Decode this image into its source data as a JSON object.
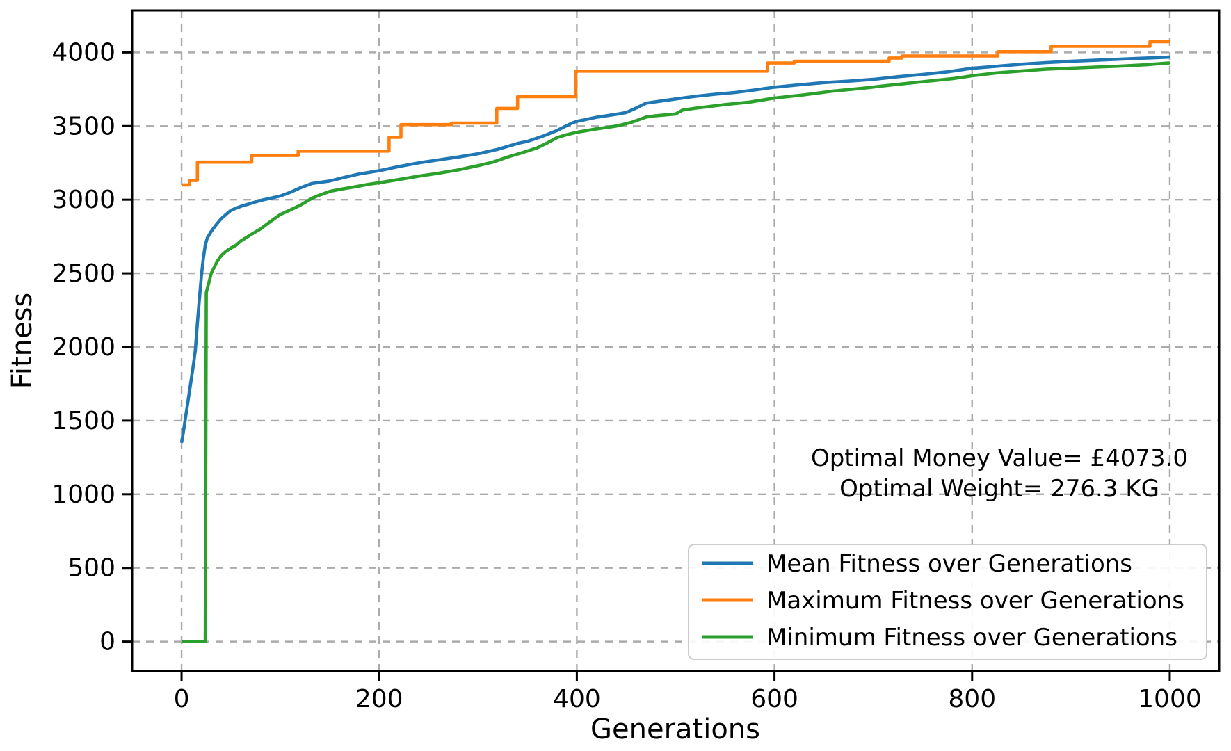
{
  "figure": {
    "background": "#ffffff",
    "spine_color": "#000000",
    "grid_color": "#ababab",
    "tick_label_color": "#000000"
  },
  "chart_data": {
    "type": "line",
    "title": "",
    "xlabel": "Generations",
    "ylabel": "Fitness",
    "xlim": [
      -50,
      1050
    ],
    "ylim": [
      -200,
      4285
    ],
    "xticks": [
      0,
      200,
      400,
      600,
      800,
      1000
    ],
    "yticks": [
      0,
      500,
      1000,
      1500,
      2000,
      2500,
      3000,
      3500,
      4000
    ],
    "grid": true,
    "grid_style": "dashed",
    "legend_position": "lower right",
    "annotation": {
      "lines": [
        "Optimal Money Value= £4073.0",
        "Optimal Weight= 276.3 KG"
      ],
      "align": "center"
    },
    "series": [
      {
        "name": "Mean Fitness over Generations",
        "color": "#1f77b4",
        "points": [
          [
            0,
            1350
          ],
          [
            2,
            1430
          ],
          [
            4,
            1520
          ],
          [
            6,
            1610
          ],
          [
            8,
            1700
          ],
          [
            10,
            1790
          ],
          [
            12,
            1880
          ],
          [
            14,
            1980
          ],
          [
            16,
            2160
          ],
          [
            18,
            2320
          ],
          [
            20,
            2480
          ],
          [
            22,
            2600
          ],
          [
            24,
            2690
          ],
          [
            26,
            2740
          ],
          [
            30,
            2785
          ],
          [
            35,
            2830
          ],
          [
            40,
            2870
          ],
          [
            45,
            2900
          ],
          [
            50,
            2928
          ],
          [
            60,
            2955
          ],
          [
            70,
            2975
          ],
          [
            80,
            2995
          ],
          [
            90,
            3010
          ],
          [
            100,
            3025
          ],
          [
            110,
            3050
          ],
          [
            120,
            3080
          ],
          [
            132,
            3110
          ],
          [
            150,
            3127
          ],
          [
            165,
            3152
          ],
          [
            180,
            3175
          ],
          [
            200,
            3197
          ],
          [
            220,
            3225
          ],
          [
            240,
            3250
          ],
          [
            260,
            3270
          ],
          [
            280,
            3290
          ],
          [
            300,
            3312
          ],
          [
            320,
            3342
          ],
          [
            340,
            3382
          ],
          [
            350,
            3396
          ],
          [
            365,
            3430
          ],
          [
            380,
            3470
          ],
          [
            395,
            3520
          ],
          [
            400,
            3532
          ],
          [
            420,
            3560
          ],
          [
            440,
            3580
          ],
          [
            450,
            3592
          ],
          [
            460,
            3622
          ],
          [
            470,
            3655
          ],
          [
            485,
            3670
          ],
          [
            500,
            3684
          ],
          [
            520,
            3702
          ],
          [
            540,
            3716
          ],
          [
            560,
            3728
          ],
          [
            580,
            3745
          ],
          [
            600,
            3764
          ],
          [
            625,
            3780
          ],
          [
            650,
            3795
          ],
          [
            675,
            3805
          ],
          [
            700,
            3817
          ],
          [
            725,
            3835
          ],
          [
            750,
            3850
          ],
          [
            775,
            3868
          ],
          [
            800,
            3892
          ],
          [
            825,
            3906
          ],
          [
            850,
            3920
          ],
          [
            875,
            3931
          ],
          [
            900,
            3940
          ],
          [
            925,
            3947
          ],
          [
            950,
            3954
          ],
          [
            975,
            3961
          ],
          [
            1000,
            3968
          ]
        ]
      },
      {
        "name": "Maximum Fitness over Generations",
        "color": "#ff7f0e",
        "points": [
          [
            0,
            3100
          ],
          [
            8,
            3100
          ],
          [
            8,
            3130
          ],
          [
            16,
            3130
          ],
          [
            16,
            3255
          ],
          [
            71,
            3255
          ],
          [
            71,
            3300
          ],
          [
            118,
            3300
          ],
          [
            118,
            3330
          ],
          [
            210,
            3330
          ],
          [
            210,
            3424
          ],
          [
            222,
            3424
          ],
          [
            222,
            3510
          ],
          [
            273,
            3510
          ],
          [
            273,
            3520
          ],
          [
            319,
            3520
          ],
          [
            319,
            3620
          ],
          [
            340,
            3620
          ],
          [
            340,
            3700
          ],
          [
            399,
            3700
          ],
          [
            399,
            3873
          ],
          [
            593,
            3873
          ],
          [
            593,
            3928
          ],
          [
            620,
            3928
          ],
          [
            620,
            3940
          ],
          [
            716,
            3940
          ],
          [
            716,
            3962
          ],
          [
            729,
            3962
          ],
          [
            729,
            3976
          ],
          [
            826,
            3976
          ],
          [
            826,
            4005
          ],
          [
            880,
            4005
          ],
          [
            880,
            4042
          ],
          [
            980,
            4042
          ],
          [
            980,
            4073
          ],
          [
            1000,
            4073
          ]
        ]
      },
      {
        "name": "Minimum Fitness over Generations",
        "color": "#2ca02c",
        "points": [
          [
            0,
            0
          ],
          [
            24,
            0
          ],
          [
            25,
            2370
          ],
          [
            27,
            2420
          ],
          [
            30,
            2500
          ],
          [
            33,
            2540
          ],
          [
            36,
            2580
          ],
          [
            40,
            2620
          ],
          [
            45,
            2650
          ],
          [
            50,
            2672
          ],
          [
            55,
            2690
          ],
          [
            60,
            2720
          ],
          [
            70,
            2762
          ],
          [
            80,
            2802
          ],
          [
            90,
            2852
          ],
          [
            100,
            2900
          ],
          [
            110,
            2930
          ],
          [
            120,
            2962
          ],
          [
            132,
            3010
          ],
          [
            140,
            3032
          ],
          [
            150,
            3056
          ],
          [
            160,
            3070
          ],
          [
            175,
            3087
          ],
          [
            190,
            3105
          ],
          [
            200,
            3115
          ],
          [
            220,
            3137
          ],
          [
            240,
            3160
          ],
          [
            260,
            3180
          ],
          [
            280,
            3202
          ],
          [
            300,
            3231
          ],
          [
            315,
            3255
          ],
          [
            330,
            3290
          ],
          [
            345,
            3320
          ],
          [
            360,
            3352
          ],
          [
            370,
            3385
          ],
          [
            380,
            3422
          ],
          [
            390,
            3442
          ],
          [
            400,
            3458
          ],
          [
            420,
            3481
          ],
          [
            440,
            3500
          ],
          [
            455,
            3525
          ],
          [
            470,
            3561
          ],
          [
            480,
            3570
          ],
          [
            500,
            3582
          ],
          [
            507,
            3608
          ],
          [
            520,
            3621
          ],
          [
            550,
            3646
          ],
          [
            575,
            3663
          ],
          [
            600,
            3690
          ],
          [
            630,
            3712
          ],
          [
            660,
            3738
          ],
          [
            690,
            3757
          ],
          [
            720,
            3780
          ],
          [
            750,
            3801
          ],
          [
            780,
            3822
          ],
          [
            800,
            3841
          ],
          [
            825,
            3861
          ],
          [
            850,
            3874
          ],
          [
            875,
            3886
          ],
          [
            900,
            3893
          ],
          [
            925,
            3900
          ],
          [
            950,
            3907
          ],
          [
            975,
            3916
          ],
          [
            1000,
            3929
          ]
        ]
      }
    ]
  }
}
